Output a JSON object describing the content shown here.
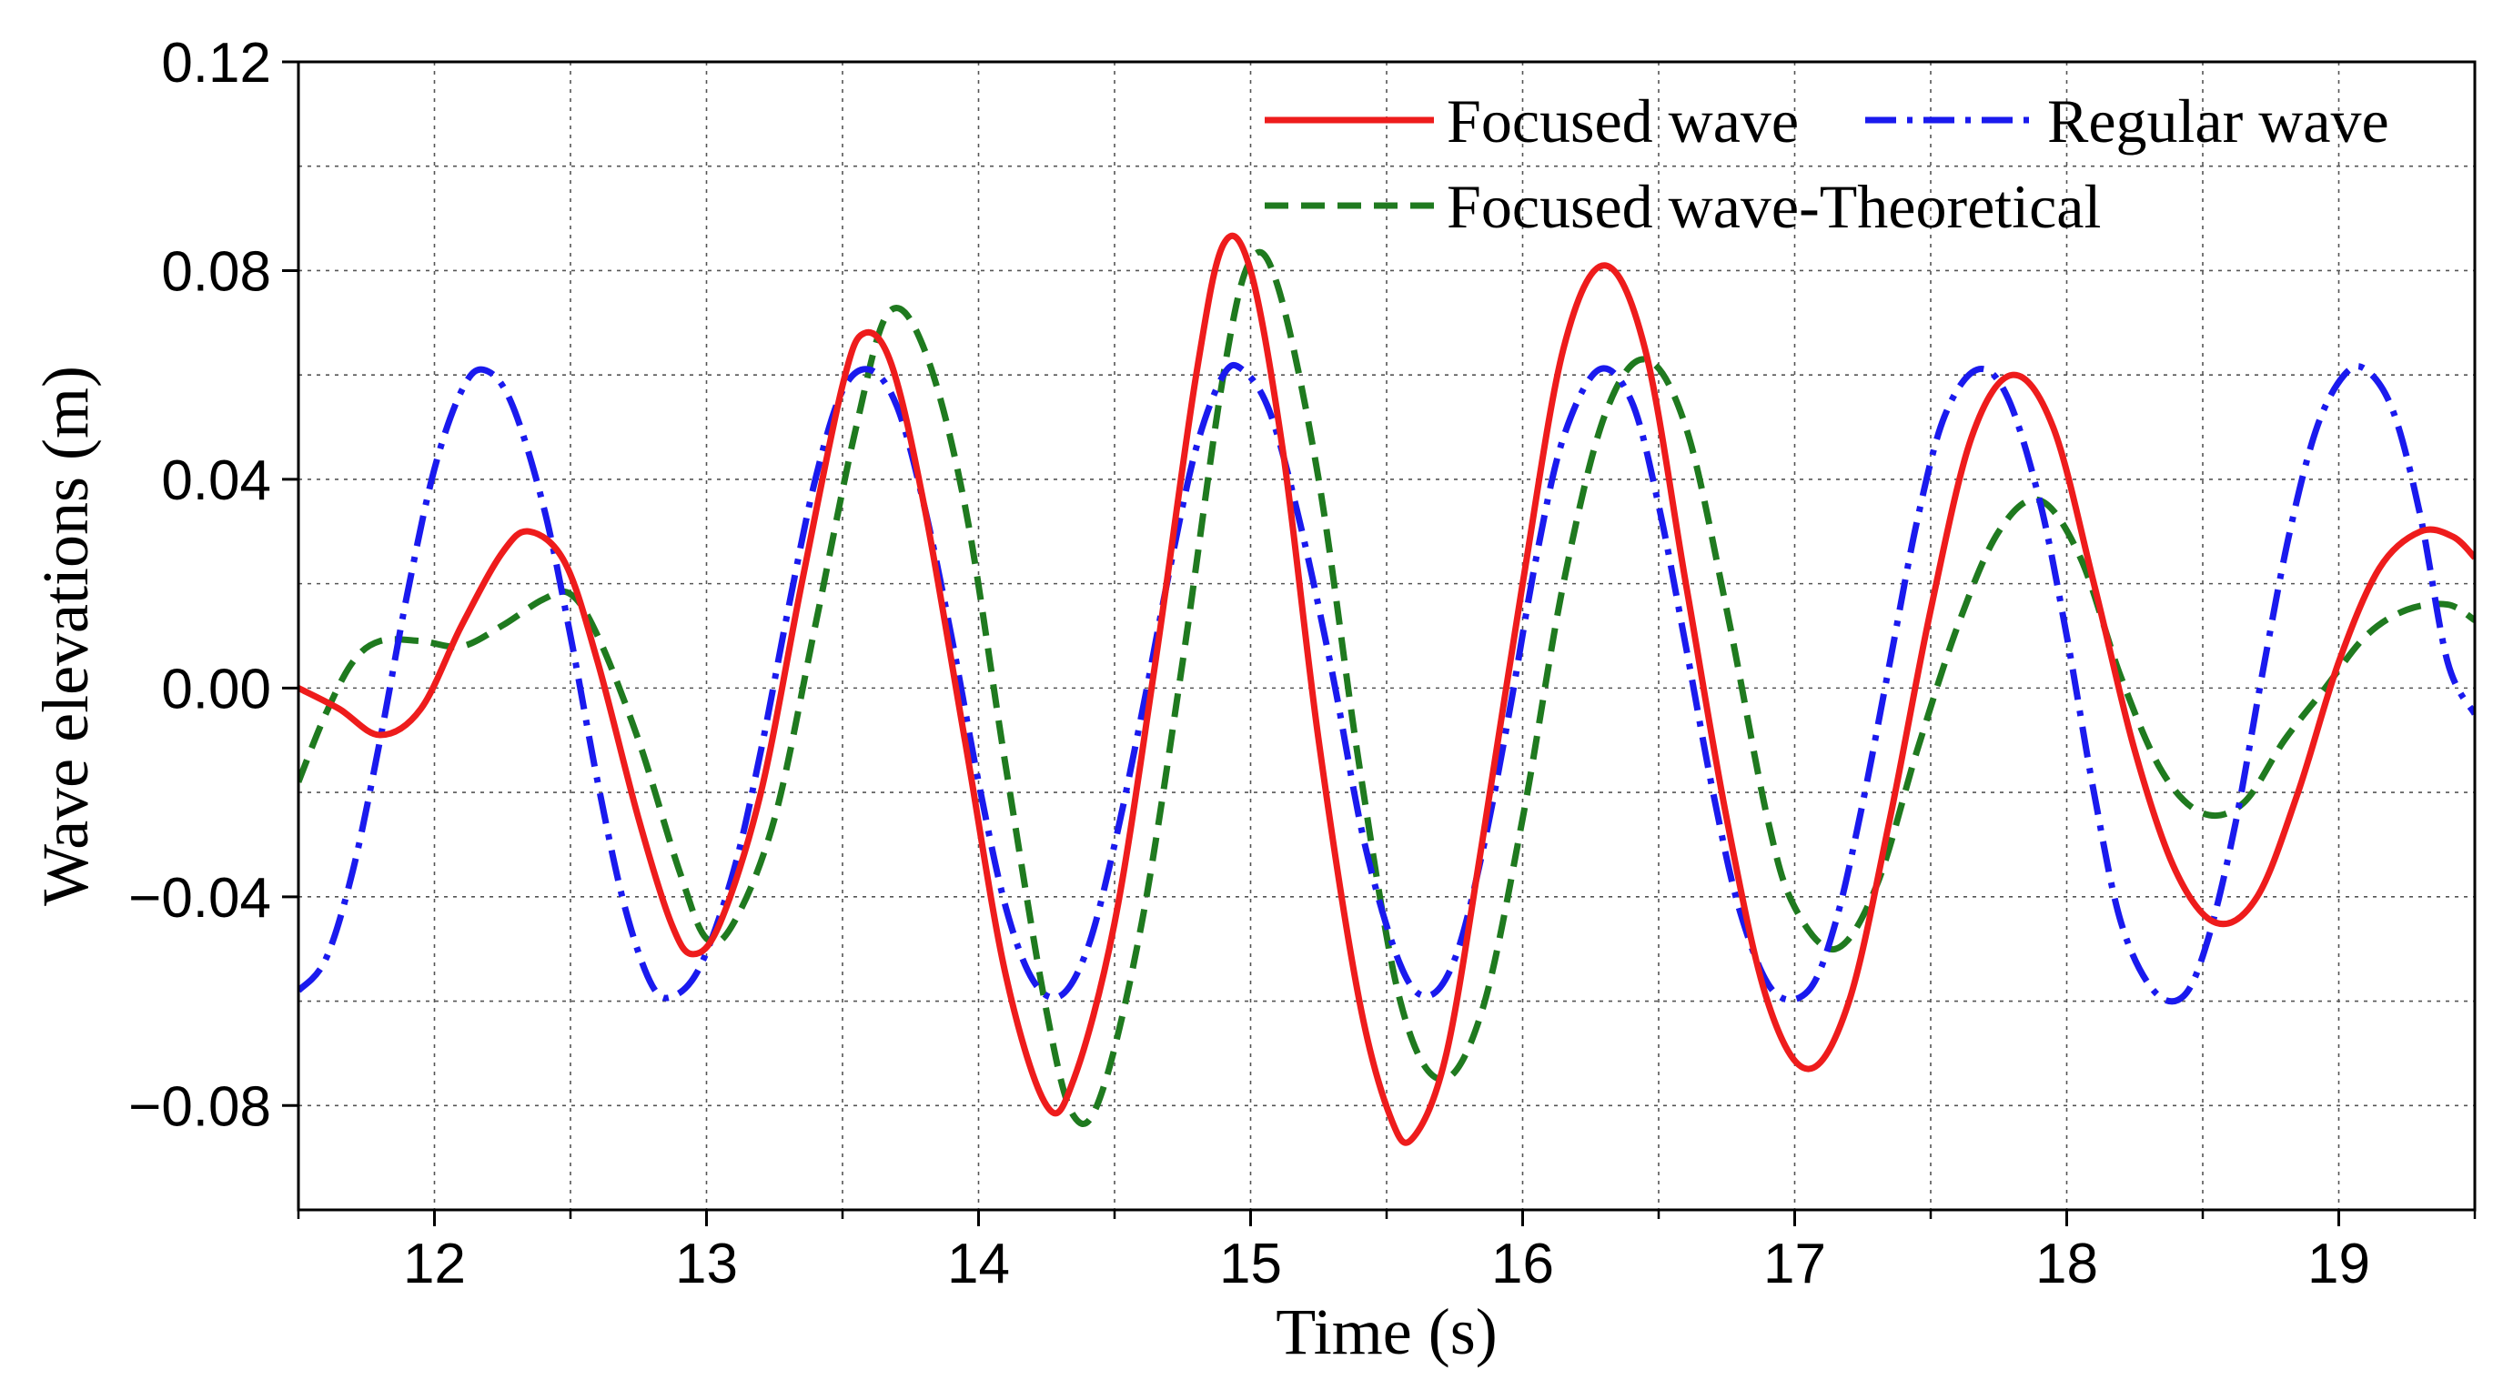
{
  "chart_data": {
    "type": "line",
    "title": "",
    "xlabel": "Time (s)",
    "ylabel": "Wave elevations (m)",
    "xlim": [
      11.5,
      19.5
    ],
    "ylim": [
      -0.1,
      0.12
    ],
    "xticks": [
      12,
      13,
      14,
      15,
      16,
      17,
      18,
      19
    ],
    "xtick_labels": [
      "12",
      "13",
      "14",
      "15",
      "16",
      "17",
      "18",
      "19"
    ],
    "yticks": [
      -0.08,
      -0.04,
      0.0,
      0.04,
      0.08,
      0.12
    ],
    "ytick_labels": [
      "−0.08",
      "−0.04",
      "0.00",
      "0.04",
      "0.08",
      "0.12"
    ],
    "grid": true,
    "legend_position": "top-right",
    "series": [
      {
        "name": "Focused wave",
        "color": "#ee1c1c",
        "style": "solid",
        "points": [
          [
            11.5,
            0.0
          ],
          [
            11.65,
            -0.004
          ],
          [
            11.8,
            -0.009
          ],
          [
            11.95,
            -0.004
          ],
          [
            12.1,
            0.012
          ],
          [
            12.25,
            0.026
          ],
          [
            12.35,
            0.03
          ],
          [
            12.48,
            0.024
          ],
          [
            12.6,
            0.005
          ],
          [
            12.75,
            -0.025
          ],
          [
            12.87,
            -0.045
          ],
          [
            12.95,
            -0.051
          ],
          [
            13.05,
            -0.045
          ],
          [
            13.2,
            -0.02
          ],
          [
            13.35,
            0.02
          ],
          [
            13.5,
            0.058
          ],
          [
            13.58,
            0.068
          ],
          [
            13.68,
            0.062
          ],
          [
            13.8,
            0.035
          ],
          [
            13.95,
            -0.01
          ],
          [
            14.1,
            -0.055
          ],
          [
            14.25,
            -0.08
          ],
          [
            14.35,
            -0.075
          ],
          [
            14.5,
            -0.045
          ],
          [
            14.65,
            0.005
          ],
          [
            14.8,
            0.06
          ],
          [
            14.9,
            0.085
          ],
          [
            15.0,
            0.08
          ],
          [
            15.12,
            0.045
          ],
          [
            15.25,
            -0.01
          ],
          [
            15.4,
            -0.06
          ],
          [
            15.52,
            -0.083
          ],
          [
            15.6,
            -0.086
          ],
          [
            15.72,
            -0.07
          ],
          [
            15.85,
            -0.03
          ],
          [
            16.0,
            0.02
          ],
          [
            16.15,
            0.065
          ],
          [
            16.3,
            0.081
          ],
          [
            16.45,
            0.065
          ],
          [
            16.6,
            0.02
          ],
          [
            16.75,
            -0.025
          ],
          [
            16.9,
            -0.06
          ],
          [
            17.05,
            -0.073
          ],
          [
            17.2,
            -0.06
          ],
          [
            17.35,
            -0.025
          ],
          [
            17.5,
            0.015
          ],
          [
            17.65,
            0.048
          ],
          [
            17.8,
            0.06
          ],
          [
            17.95,
            0.05
          ],
          [
            18.1,
            0.02
          ],
          [
            18.25,
            -0.012
          ],
          [
            18.4,
            -0.035
          ],
          [
            18.55,
            -0.045
          ],
          [
            18.7,
            -0.04
          ],
          [
            18.85,
            -0.02
          ],
          [
            19.0,
            0.005
          ],
          [
            19.15,
            0.023
          ],
          [
            19.3,
            0.03
          ],
          [
            19.42,
            0.029
          ],
          [
            19.5,
            0.025
          ]
        ]
      },
      {
        "name": "Regular wave",
        "color": "#1a1aee",
        "style": "dash-dot",
        "points": [
          [
            11.5,
            -0.058
          ],
          [
            11.6,
            -0.052
          ],
          [
            11.7,
            -0.035
          ],
          [
            11.8,
            -0.01
          ],
          [
            11.9,
            0.018
          ],
          [
            12.0,
            0.042
          ],
          [
            12.1,
            0.057
          ],
          [
            12.18,
            0.061
          ],
          [
            12.28,
            0.055
          ],
          [
            12.4,
            0.035
          ],
          [
            12.5,
            0.01
          ],
          [
            12.6,
            -0.018
          ],
          [
            12.7,
            -0.042
          ],
          [
            12.8,
            -0.057
          ],
          [
            12.88,
            -0.059
          ],
          [
            12.98,
            -0.053
          ],
          [
            13.1,
            -0.035
          ],
          [
            13.2,
            -0.012
          ],
          [
            13.3,
            0.015
          ],
          [
            13.4,
            0.04
          ],
          [
            13.5,
            0.057
          ],
          [
            13.6,
            0.061
          ],
          [
            13.7,
            0.054
          ],
          [
            13.8,
            0.035
          ],
          [
            13.9,
            0.01
          ],
          [
            14.0,
            -0.018
          ],
          [
            14.1,
            -0.042
          ],
          [
            14.2,
            -0.056
          ],
          [
            14.3,
            -0.059
          ],
          [
            14.4,
            -0.05
          ],
          [
            14.5,
            -0.03
          ],
          [
            14.6,
            -0.005
          ],
          [
            14.7,
            0.022
          ],
          [
            14.8,
            0.046
          ],
          [
            14.9,
            0.06
          ],
          [
            14.97,
            0.061
          ],
          [
            15.07,
            0.053
          ],
          [
            15.18,
            0.032
          ],
          [
            15.3,
            0.003
          ],
          [
            15.42,
            -0.03
          ],
          [
            15.55,
            -0.053
          ],
          [
            15.65,
            -0.059
          ],
          [
            15.75,
            -0.052
          ],
          [
            15.85,
            -0.032
          ],
          [
            15.95,
            -0.005
          ],
          [
            16.05,
            0.025
          ],
          [
            16.15,
            0.048
          ],
          [
            16.28,
            0.061
          ],
          [
            16.4,
            0.055
          ],
          [
            16.5,
            0.035
          ],
          [
            16.6,
            0.008
          ],
          [
            16.7,
            -0.02
          ],
          [
            16.8,
            -0.043
          ],
          [
            16.92,
            -0.058
          ],
          [
            17.05,
            -0.058
          ],
          [
            17.15,
            -0.045
          ],
          [
            17.25,
            -0.022
          ],
          [
            17.35,
            0.005
          ],
          [
            17.45,
            0.032
          ],
          [
            17.55,
            0.052
          ],
          [
            17.67,
            0.061
          ],
          [
            17.78,
            0.056
          ],
          [
            17.9,
            0.036
          ],
          [
            18.0,
            0.01
          ],
          [
            18.1,
            -0.02
          ],
          [
            18.2,
            -0.045
          ],
          [
            18.32,
            -0.058
          ],
          [
            18.43,
            -0.059
          ],
          [
            18.52,
            -0.048
          ],
          [
            18.62,
            -0.026
          ],
          [
            18.72,
            0.003
          ],
          [
            18.82,
            0.03
          ],
          [
            18.92,
            0.05
          ],
          [
            19.02,
            0.06
          ],
          [
            19.1,
            0.061
          ],
          [
            19.2,
            0.053
          ],
          [
            19.3,
            0.033
          ],
          [
            19.4,
            0.005
          ],
          [
            19.5,
            -0.005
          ]
        ]
      },
      {
        "name": "Focused wave-Theoretical",
        "color": "#1f7a1f",
        "style": "dashed",
        "points": [
          [
            11.5,
            -0.018
          ],
          [
            11.6,
            -0.005
          ],
          [
            11.7,
            0.005
          ],
          [
            11.8,
            0.009
          ],
          [
            11.95,
            0.009
          ],
          [
            12.1,
            0.008
          ],
          [
            12.25,
            0.012
          ],
          [
            12.4,
            0.017
          ],
          [
            12.5,
            0.018
          ],
          [
            12.6,
            0.01
          ],
          [
            12.75,
            -0.01
          ],
          [
            12.9,
            -0.035
          ],
          [
            13.0,
            -0.048
          ],
          [
            13.1,
            -0.045
          ],
          [
            13.25,
            -0.025
          ],
          [
            13.4,
            0.012
          ],
          [
            13.55,
            0.05
          ],
          [
            13.67,
            0.072
          ],
          [
            13.8,
            0.065
          ],
          [
            13.95,
            0.035
          ],
          [
            14.1,
            -0.015
          ],
          [
            14.25,
            -0.062
          ],
          [
            14.35,
            -0.082
          ],
          [
            14.45,
            -0.078
          ],
          [
            14.6,
            -0.045
          ],
          [
            14.75,
            0.005
          ],
          [
            14.9,
            0.06
          ],
          [
            15.0,
            0.082
          ],
          [
            15.1,
            0.077
          ],
          [
            15.25,
            0.04
          ],
          [
            15.4,
            -0.015
          ],
          [
            15.55,
            -0.06
          ],
          [
            15.7,
            -0.075
          ],
          [
            15.85,
            -0.062
          ],
          [
            16.0,
            -0.025
          ],
          [
            16.15,
            0.02
          ],
          [
            16.3,
            0.052
          ],
          [
            16.45,
            0.063
          ],
          [
            16.6,
            0.05
          ],
          [
            16.75,
            0.015
          ],
          [
            16.9,
            -0.025
          ],
          [
            17.0,
            -0.042
          ],
          [
            17.15,
            -0.05
          ],
          [
            17.3,
            -0.038
          ],
          [
            17.45,
            -0.012
          ],
          [
            17.6,
            0.012
          ],
          [
            17.75,
            0.03
          ],
          [
            17.9,
            0.036
          ],
          [
            18.05,
            0.025
          ],
          [
            18.2,
            0.002
          ],
          [
            18.35,
            -0.016
          ],
          [
            18.5,
            -0.024
          ],
          [
            18.65,
            -0.022
          ],
          [
            18.8,
            -0.01
          ],
          [
            18.95,
            0.0
          ],
          [
            19.1,
            0.01
          ],
          [
            19.25,
            0.015
          ],
          [
            19.4,
            0.016
          ],
          [
            19.5,
            0.013
          ]
        ]
      }
    ]
  }
}
